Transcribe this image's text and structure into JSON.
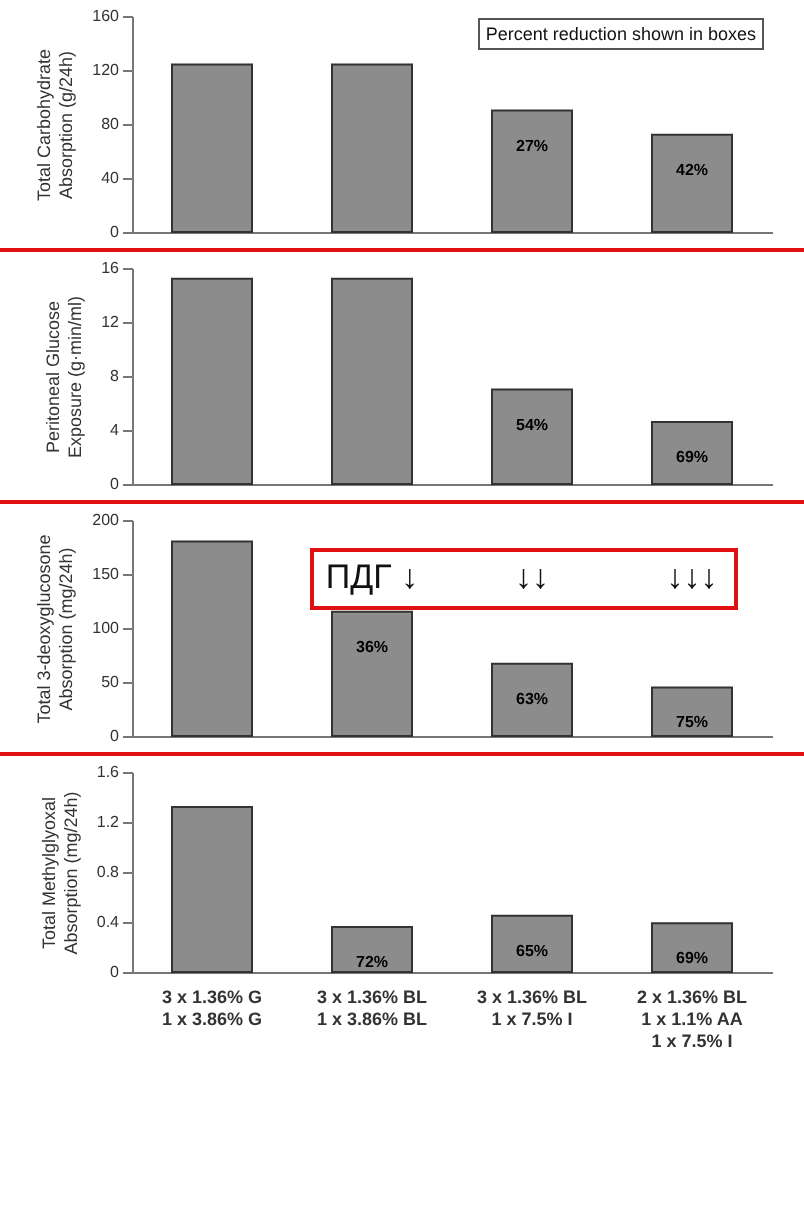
{
  "chart_data": [
    {
      "type": "bar",
      "ylabel": "Total Carbohydrate Absorption (g/24h)",
      "categories": [
        "3 x 1.36% G\n1 x 3.86% G",
        "3 x 1.36% BL\n1 x 3.86% BL",
        "3 x 1.36% BL\n1 x 7.5% I",
        "2 x 1.36% BL\n1 x 1.1% AA\n1 x 7.5% I"
      ],
      "values": [
        124,
        124,
        90,
        72
      ],
      "color": "#8c8c8c",
      "ylim": [
        0,
        160
      ],
      "yticks": [
        0,
        40,
        80,
        120,
        160
      ],
      "grid": false,
      "tick_labels": "y",
      "annotations": [
        "Percent reduction shown in boxes",
        {
          "text": "27%",
          "x": "3 x 1.36% BL\n1 x 7.5% I",
          "y": 90
        },
        {
          "text": "42%",
          "x": "2 x 1.36% BL\n1 x 1.1% AA\n1 x 7.5% I",
          "y": 72
        }
      ]
    },
    {
      "type": "bar",
      "ylabel": "Peritoneal Glucose Exposure (g·min/ml)",
      "categories": [
        "3 x 1.36% G\n1 x 3.86% G",
        "3 x 1.36% BL\n1 x 3.86% BL",
        "3 x 1.36% BL\n1 x 7.5% I",
        "2 x 1.36% BL\n1 x 1.1% AA\n1 x 7.5% I"
      ],
      "values": [
        15.2,
        15.2,
        7.0,
        4.6
      ],
      "color": "#8c8c8c",
      "ylim": [
        0,
        16
      ],
      "yticks": [
        0,
        4,
        8,
        12,
        16
      ],
      "grid": false,
      "tick_labels": "y",
      "annotations": [
        {
          "text": "54%",
          "x": "3 x 1.36% BL\n1 x 7.5% I",
          "y": 7.0
        },
        {
          "text": "69%",
          "x": "2 x 1.36% BL\n1 x 1.1% AA\n1 x 7.5% I",
          "y": 4.6
        }
      ]
    },
    {
      "type": "bar",
      "ylabel": "Total 3-deoxyglucosone Absorption (mg/24h)",
      "categories": [
        "3 x 1.36% G\n1 x 3.86% G",
        "3 x 1.36% BL\n1 x 3.86% BL",
        "3 x 1.36% BL\n1 x 7.5% I",
        "2 x 1.36% BL\n1 x 1.1% AA\n1 x 7.5% I"
      ],
      "values": [
        180,
        115,
        67,
        45
      ],
      "color": "#8c8c8c",
      "ylim": [
        0,
        200
      ],
      "yticks": [
        0,
        50,
        100,
        150,
        200
      ],
      "grid": false,
      "tick_labels": "y",
      "annotations": [
        "ПДГ ↓",
        "↓↓",
        "↓↓↓",
        {
          "text": "36%",
          "x": "3 x 1.36% BL\n1 x 3.86% BL",
          "y": 115
        },
        {
          "text": "63%",
          "x": "3 x 1.36% BL\n1 x 7.5% I",
          "y": 67
        },
        {
          "text": "75%",
          "x": "2 x 1.36% BL\n1 x 1.1% AA\n1 x 7.5% I",
          "y": 45
        }
      ]
    },
    {
      "type": "bar",
      "ylabel": "Total Methylglyoxal Absorption (mg/24h)",
      "categories": [
        "3 x 1.36% G\n1 x 3.86% G",
        "3 x 1.36% BL\n1 x 3.86% BL",
        "3 x 1.36% BL\n1 x 7.5% I",
        "2 x 1.36% BL\n1 x 1.1% AA\n1 x 7.5% I"
      ],
      "values": [
        1.32,
        0.36,
        0.45,
        0.39
      ],
      "color": "#8c8c8c",
      "ylim": [
        0,
        1.6
      ],
      "yticks": [
        0,
        0.4,
        0.8,
        1.2,
        1.6
      ],
      "grid": false,
      "annotations": [
        {
          "text": "72%",
          "x": "3 x 1.36% BL\n1 x 3.86% BL",
          "y": 0.36
        },
        {
          "text": "65%",
          "x": "3 x 1.36% BL\n1 x 7.5% I",
          "y": 0.45
        },
        {
          "text": "69%",
          "x": "2 x 1.36% BL\n1 x 1.1% AA\n1 x 7.5% I",
          "y": 0.39
        }
      ]
    }
  ]
}
